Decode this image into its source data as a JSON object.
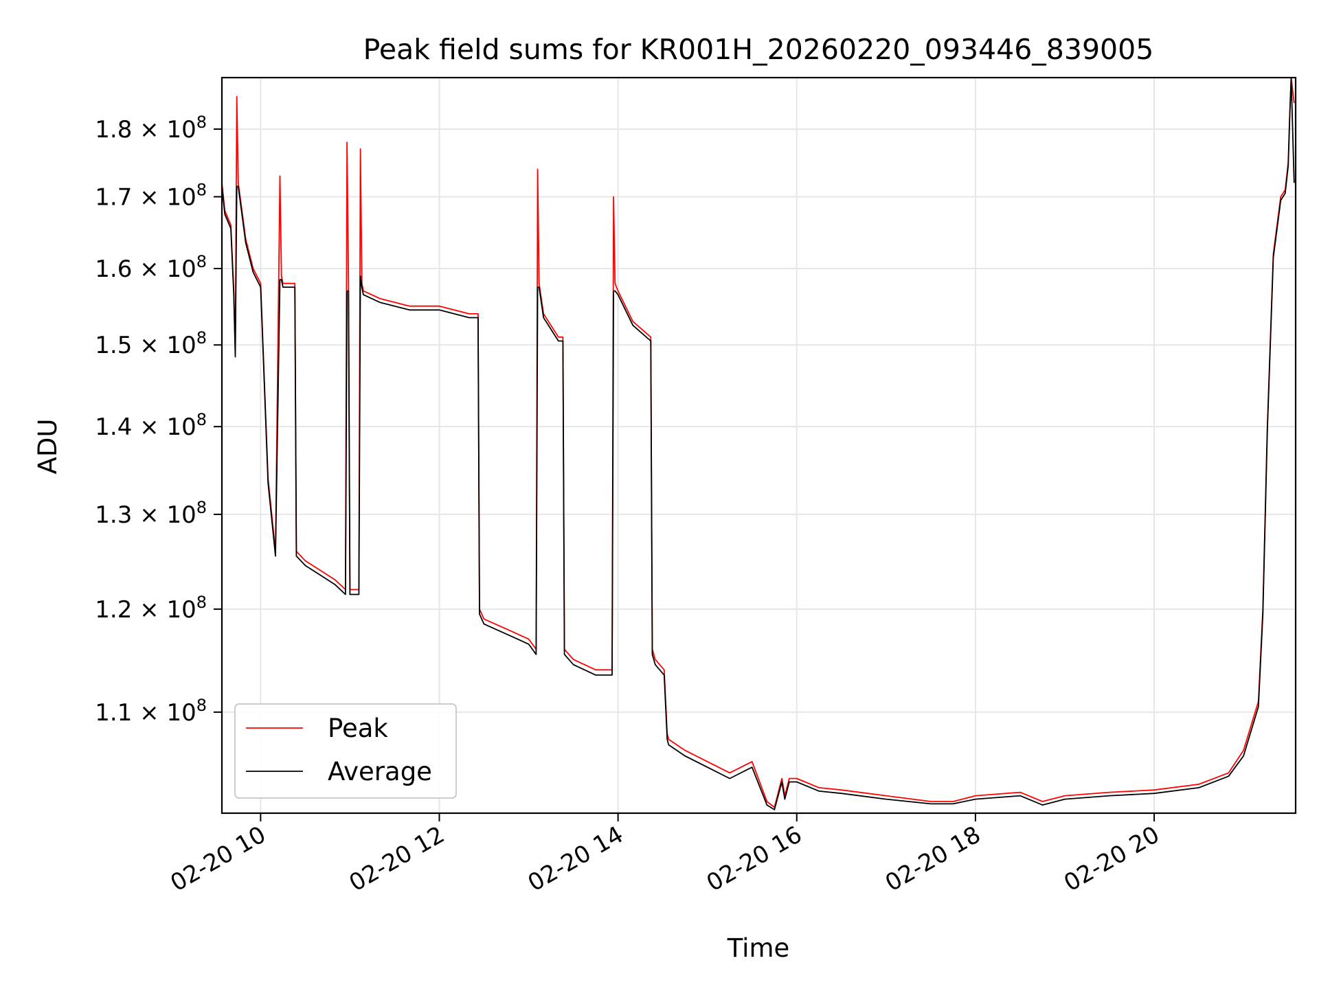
{
  "chart_data": {
    "type": "line",
    "title": "Peak field sums for KR001H_20260220_093446_839005",
    "xlabel": "Time",
    "ylabel": "ADU",
    "yscale": "log",
    "xlim": [
      "02-20 09:34",
      "02-20 21:35"
    ],
    "ylim": [
      101000000,
      188000000
    ],
    "grid": true,
    "legend": "lower-left",
    "x_ticks": [
      "02-20 10",
      "02-20 12",
      "02-20 14",
      "02-20 16",
      "02-20 18",
      "02-20 20"
    ],
    "x_tick_times": [
      "02-20 10:00",
      "02-20 12:00",
      "02-20 14:00",
      "02-20 16:00",
      "02-20 18:00",
      "02-20 20:00"
    ],
    "y_ticks": [
      {
        "value": 110000000,
        "mantissa": "1.1",
        "exponent": "8"
      },
      {
        "value": 120000000,
        "mantissa": "1.2",
        "exponent": "8"
      },
      {
        "value": 130000000,
        "mantissa": "1.3",
        "exponent": "8"
      },
      {
        "value": 140000000,
        "mantissa": "1.4",
        "exponent": "8"
      },
      {
        "value": 150000000,
        "mantissa": "1.5",
        "exponent": "8"
      },
      {
        "value": 160000000,
        "mantissa": "1.6",
        "exponent": "8"
      },
      {
        "value": 170000000,
        "mantissa": "1.7",
        "exponent": "8"
      },
      {
        "value": 180000000,
        "mantissa": "1.8",
        "exponent": "8"
      }
    ],
    "series": [
      {
        "name": "Peak",
        "color": "#ff0000",
        "x": [
          "02-20 09:34",
          "02-20 09:36",
          "02-20 09:40",
          "02-20 09:42",
          "02-20 09:43",
          "02-20 09:44",
          "02-20 09:45",
          "02-20 09:50",
          "02-20 09:55",
          "02-20 10:00",
          "02-20 10:02",
          "02-20 10:05",
          "02-20 10:10",
          "02-20 10:13",
          "02-20 10:14",
          "02-20 10:15",
          "02-20 10:20",
          "02-20 10:23",
          "02-20 10:24",
          "02-20 10:30",
          "02-20 10:40",
          "02-20 10:50",
          "02-20 10:57",
          "02-20 10:58",
          "02-20 10:59",
          "02-20 11:00",
          "02-20 11:06",
          "02-20 11:07",
          "02-20 11:08",
          "02-20 11:09",
          "02-20 11:20",
          "02-20 11:40",
          "02-20 12:00",
          "02-20 12:20",
          "02-20 12:26",
          "02-20 12:27",
          "02-20 12:30",
          "02-20 12:45",
          "02-20 13:00",
          "02-20 13:05",
          "02-20 13:06",
          "02-20 13:07",
          "02-20 13:10",
          "02-20 13:20",
          "02-20 13:23",
          "02-20 13:24",
          "02-20 13:30",
          "02-20 13:45",
          "02-20 13:56",
          "02-20 13:57",
          "02-20 13:58",
          "02-20 14:00",
          "02-20 14:10",
          "02-20 14:22",
          "02-20 14:23",
          "02-20 14:25",
          "02-20 14:31",
          "02-20 14:33",
          "02-20 14:34",
          "02-20 14:45",
          "02-20 15:00",
          "02-20 15:15",
          "02-20 15:30",
          "02-20 15:40",
          "02-20 15:45",
          "02-20 15:50",
          "02-20 15:52",
          "02-20 15:55",
          "02-20 16:00",
          "02-20 16:15",
          "02-20 16:30",
          "02-20 17:00",
          "02-20 17:30",
          "02-20 17:45",
          "02-20 18:00",
          "02-20 18:30",
          "02-20 18:45",
          "02-20 19:00",
          "02-20 19:30",
          "02-20 20:00",
          "02-20 20:30",
          "02-20 20:50",
          "02-20 21:00",
          "02-20 21:10",
          "02-20 21:13",
          "02-20 21:16",
          "02-20 21:20",
          "02-20 21:25",
          "02-20 21:28",
          "02-20 21:30",
          "02-20 21:31",
          "02-20 21:32",
          "02-20 21:34"
        ],
        "y": [
          172000000,
          168000000,
          166000000,
          157000000,
          149000000,
          185000000,
          172000000,
          164000000,
          160000000,
          158000000,
          148000000,
          134000000,
          126000000,
          173000000,
          159000000,
          158000000,
          158000000,
          158000000,
          126000000,
          125000000,
          124000000,
          123000000,
          122000000,
          178000000,
          158000000,
          122000000,
          122000000,
          177000000,
          158000000,
          157000000,
          156000000,
          155000000,
          155000000,
          154000000,
          154000000,
          120000000,
          119000000,
          118000000,
          117000000,
          116000000,
          174000000,
          158000000,
          154000000,
          151000000,
          151000000,
          116000000,
          115000000,
          114000000,
          114000000,
          170000000,
          158000000,
          157000000,
          153000000,
          151000000,
          116000000,
          115000000,
          114000000,
          108000000,
          107500000,
          106500000,
          105500000,
          104500000,
          105500000,
          102000000,
          101500000,
          104000000,
          102500000,
          104000000,
          104000000,
          103200000,
          103000000,
          102500000,
          102000000,
          102000000,
          102500000,
          102800000,
          102000000,
          102500000,
          102800000,
          103000000,
          103500000,
          104500000,
          106500000,
          111000000,
          120000000,
          140000000,
          162000000,
          170000000,
          171000000,
          175000000,
          182000000,
          188000000,
          184000000
        ]
      },
      {
        "name": "Average",
        "color": "#000000",
        "x": [
          "02-20 09:34",
          "02-20 09:36",
          "02-20 09:40",
          "02-20 09:42",
          "02-20 09:43",
          "02-20 09:44",
          "02-20 09:45",
          "02-20 09:50",
          "02-20 09:55",
          "02-20 10:00",
          "02-20 10:02",
          "02-20 10:05",
          "02-20 10:10",
          "02-20 10:13",
          "02-20 10:14",
          "02-20 10:15",
          "02-20 10:20",
          "02-20 10:23",
          "02-20 10:24",
          "02-20 10:30",
          "02-20 10:40",
          "02-20 10:50",
          "02-20 10:57",
          "02-20 10:58",
          "02-20 10:59",
          "02-20 11:00",
          "02-20 11:06",
          "02-20 11:07",
          "02-20 11:08",
          "02-20 11:09",
          "02-20 11:20",
          "02-20 11:40",
          "02-20 12:00",
          "02-20 12:20",
          "02-20 12:26",
          "02-20 12:27",
          "02-20 12:30",
          "02-20 12:45",
          "02-20 13:00",
          "02-20 13:05",
          "02-20 13:06",
          "02-20 13:07",
          "02-20 13:10",
          "02-20 13:20",
          "02-20 13:23",
          "02-20 13:24",
          "02-20 13:30",
          "02-20 13:45",
          "02-20 13:56",
          "02-20 13:57",
          "02-20 13:58",
          "02-20 14:00",
          "02-20 14:10",
          "02-20 14:22",
          "02-20 14:23",
          "02-20 14:25",
          "02-20 14:31",
          "02-20 14:33",
          "02-20 14:34",
          "02-20 14:45",
          "02-20 15:00",
          "02-20 15:15",
          "02-20 15:30",
          "02-20 15:40",
          "02-20 15:45",
          "02-20 15:50",
          "02-20 15:52",
          "02-20 15:55",
          "02-20 16:00",
          "02-20 16:15",
          "02-20 16:30",
          "02-20 17:00",
          "02-20 17:30",
          "02-20 17:45",
          "02-20 18:00",
          "02-20 18:30",
          "02-20 18:45",
          "02-20 19:00",
          "02-20 19:30",
          "02-20 20:00",
          "02-20 20:30",
          "02-20 20:50",
          "02-20 21:00",
          "02-20 21:10",
          "02-20 21:13",
          "02-20 21:16",
          "02-20 21:20",
          "02-20 21:25",
          "02-20 21:28",
          "02-20 21:30",
          "02-20 21:31",
          "02-20 21:32",
          "02-20 21:34"
        ],
        "y": [
          171500000,
          167500000,
          165500000,
          156500000,
          148500000,
          171500000,
          171500000,
          163500000,
          159500000,
          157500000,
          147500000,
          133500000,
          125500000,
          158500000,
          158500000,
          157500000,
          157500000,
          157500000,
          125500000,
          124500000,
          123500000,
          122500000,
          121500000,
          157000000,
          157000000,
          121500000,
          121500000,
          159000000,
          157500000,
          156500000,
          155500000,
          154500000,
          154500000,
          153500000,
          153500000,
          119500000,
          118500000,
          117500000,
          116500000,
          115500000,
          157500000,
          157500000,
          153500000,
          150500000,
          150500000,
          115500000,
          114500000,
          113500000,
          113500000,
          157000000,
          157000000,
          156500000,
          152500000,
          150500000,
          115500000,
          114500000,
          113500000,
          107500000,
          107000000,
          106000000,
          105000000,
          104000000,
          105000000,
          101700000,
          101300000,
          103700000,
          102200000,
          103700000,
          103700000,
          102900000,
          102700000,
          102200000,
          101800000,
          101800000,
          102200000,
          102500000,
          101700000,
          102200000,
          102500000,
          102700000,
          103200000,
          104200000,
          106000000,
          110500000,
          119500000,
          139500000,
          161500000,
          169500000,
          170500000,
          174500000,
          181500000,
          188000000,
          172000000
        ]
      }
    ]
  }
}
